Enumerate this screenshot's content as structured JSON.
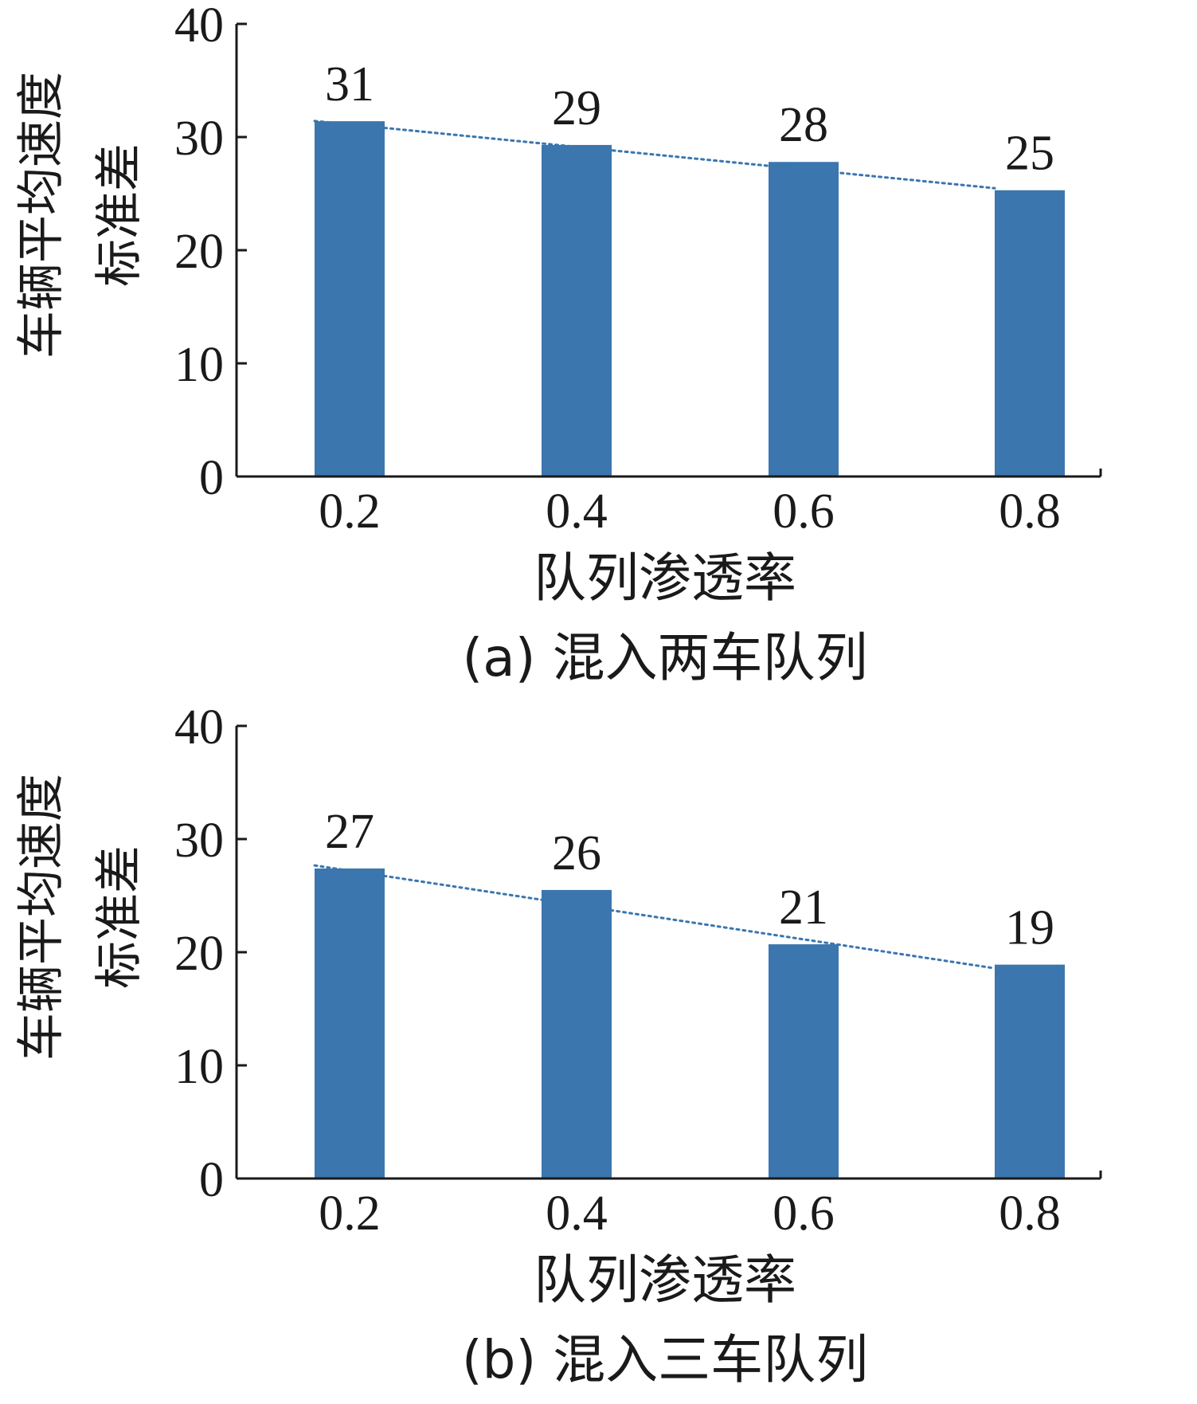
{
  "chart_data": [
    {
      "type": "bar",
      "caption": "(a) 混入两车队列",
      "categories": [
        "0.2",
        "0.4",
        "0.6",
        "0.8"
      ],
      "values": [
        31.4,
        29.3,
        27.8,
        25.3
      ],
      "data_labels": [
        "31",
        "29",
        "28",
        "25"
      ],
      "xlabel": "队列渗透率",
      "ylabel_lines": [
        "车辆平均速度",
        "标准差"
      ],
      "ylim": [
        0,
        40
      ],
      "yticks": [
        0,
        10,
        20,
        30,
        40
      ],
      "trendline": "dotted linear",
      "grid": false,
      "bar_color": "#3b76ae",
      "trend_color": "#3b76ae"
    },
    {
      "type": "bar",
      "caption": "(b) 混入三车队列",
      "categories": [
        "0.2",
        "0.4",
        "0.6",
        "0.8"
      ],
      "values": [
        27.4,
        25.5,
        20.7,
        18.9
      ],
      "data_labels": [
        "27",
        "26",
        "21",
        "19"
      ],
      "xlabel": "队列渗透率",
      "ylabel_lines": [
        "车辆平均速度",
        "标准差"
      ],
      "ylim": [
        0,
        40
      ],
      "yticks": [
        0,
        10,
        20,
        30,
        40
      ],
      "trendline": "dotted linear",
      "grid": false,
      "bar_color": "#3b76ae",
      "trend_color": "#3b76ae"
    }
  ]
}
